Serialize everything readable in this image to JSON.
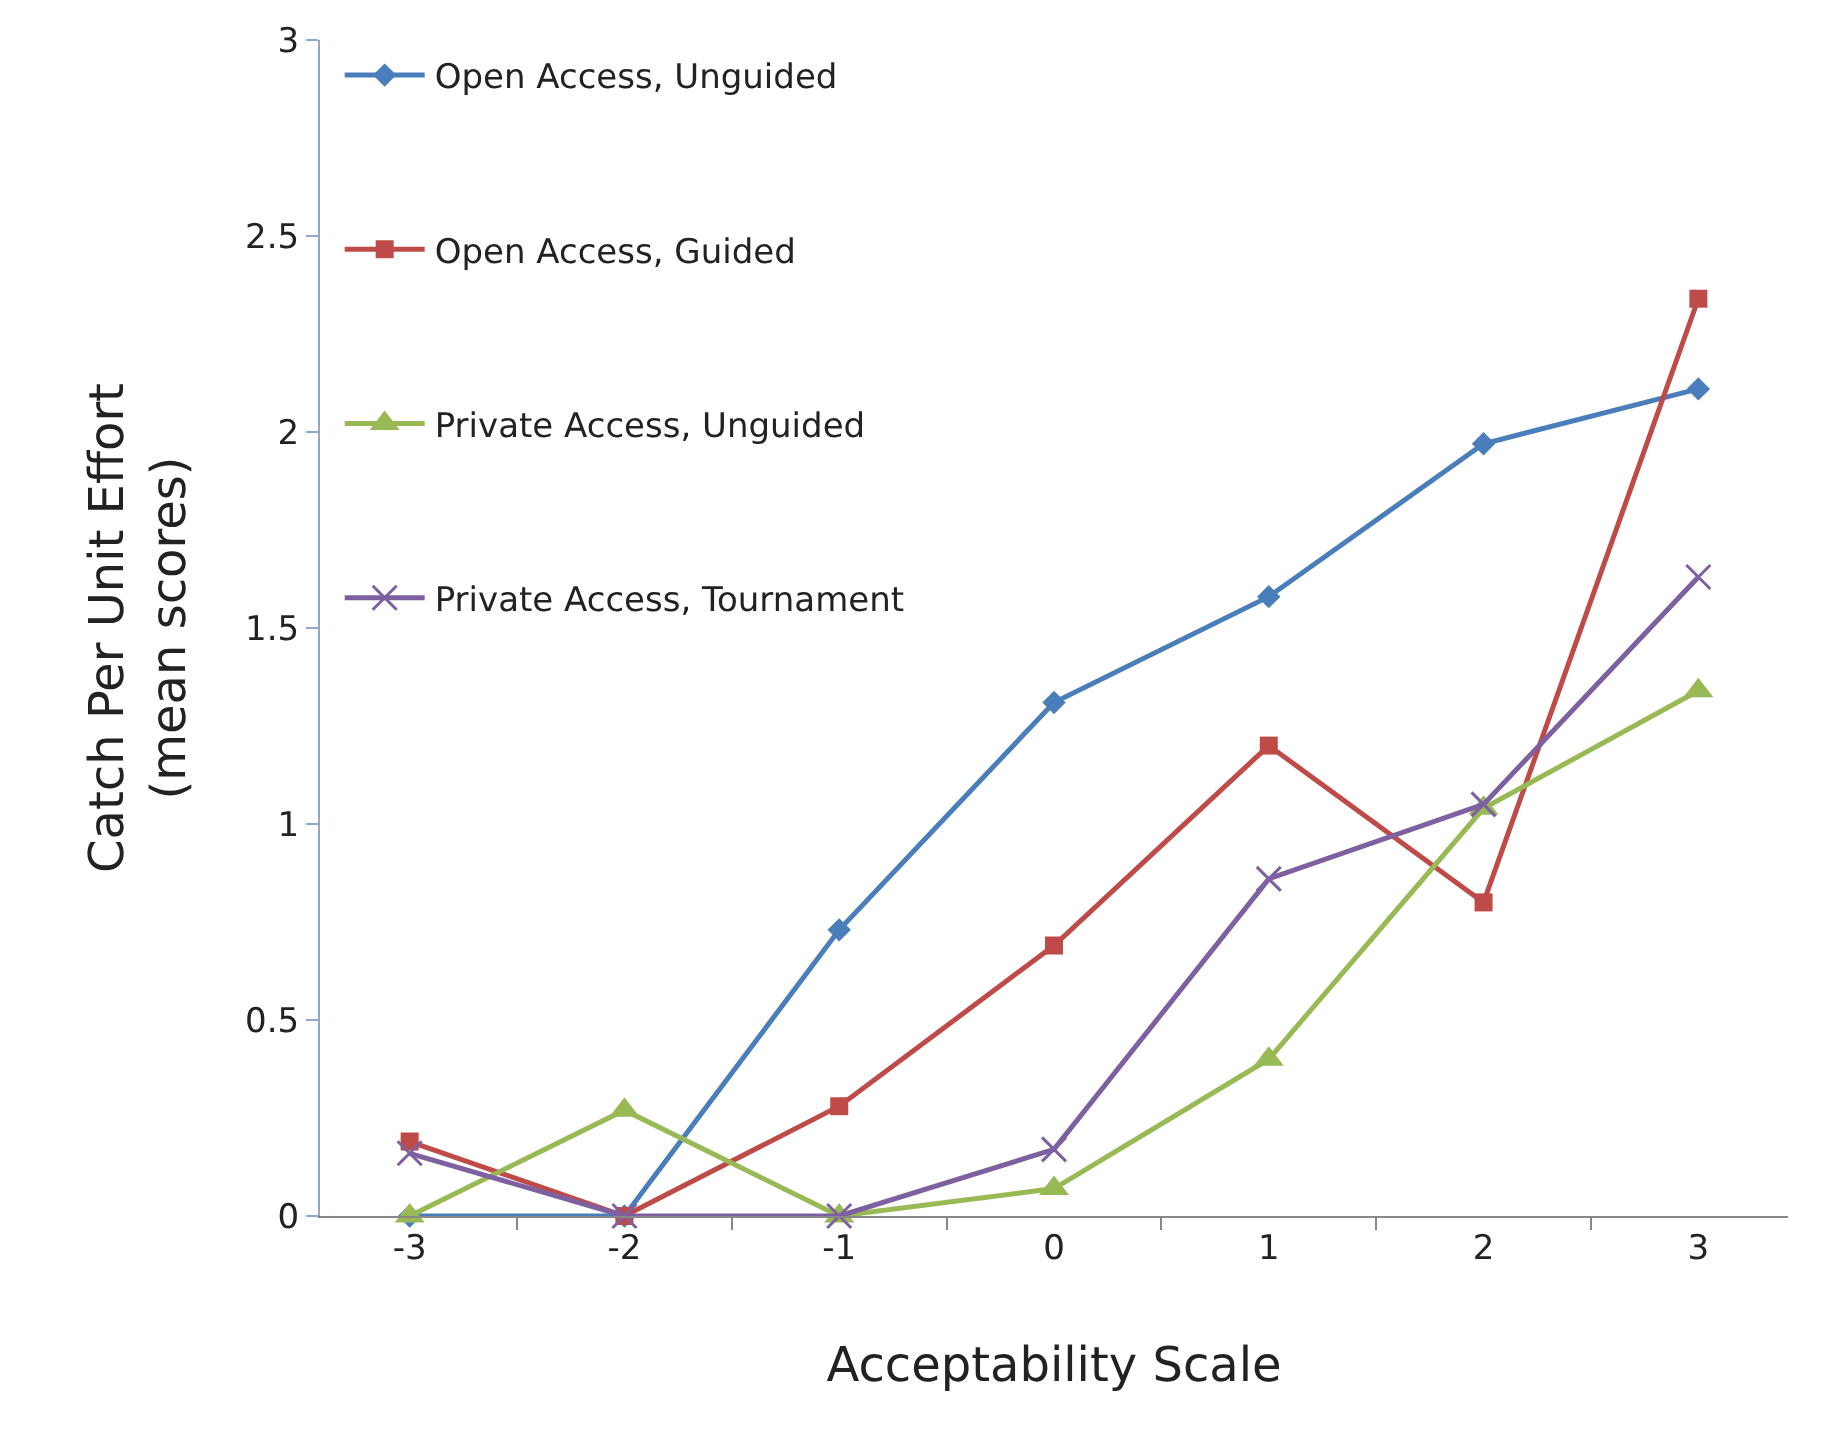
{
  "chart_data": {
    "type": "line",
    "xlabel": "Acceptability Scale",
    "ylabel": "Catch Per Unit Effort\n(mean scores)",
    "categories": [
      "-3",
      "-2",
      "-1",
      "0",
      "1",
      "2",
      "3"
    ],
    "ylim": [
      0,
      3
    ],
    "yticks": [
      0,
      0.5,
      1,
      1.5,
      2,
      2.5,
      3
    ],
    "grid": false,
    "legend": "top left",
    "series": [
      {
        "name": "Open Access, Unguided",
        "color": "#4a7ebb",
        "marker": "diamond",
        "values": [
          0,
          0,
          0.73,
          1.31,
          1.58,
          1.97,
          2.11
        ]
      },
      {
        "name": "Open Access, Guided",
        "color": "#be4b48",
        "marker": "square",
        "values": [
          0.19,
          0,
          0.28,
          0.69,
          1.2,
          0.8,
          2.34
        ]
      },
      {
        "name": "Private Access, Unguided",
        "color": "#98b954",
        "marker": "triangle",
        "values": [
          0,
          0.27,
          0,
          0.07,
          0.4,
          1.04,
          1.34
        ]
      },
      {
        "name": "Private Access, Tournament",
        "color": "#7d60a0",
        "marker": "cross",
        "values": [
          0.16,
          0,
          0,
          0.17,
          0.86,
          1.05,
          1.63
        ]
      }
    ]
  }
}
